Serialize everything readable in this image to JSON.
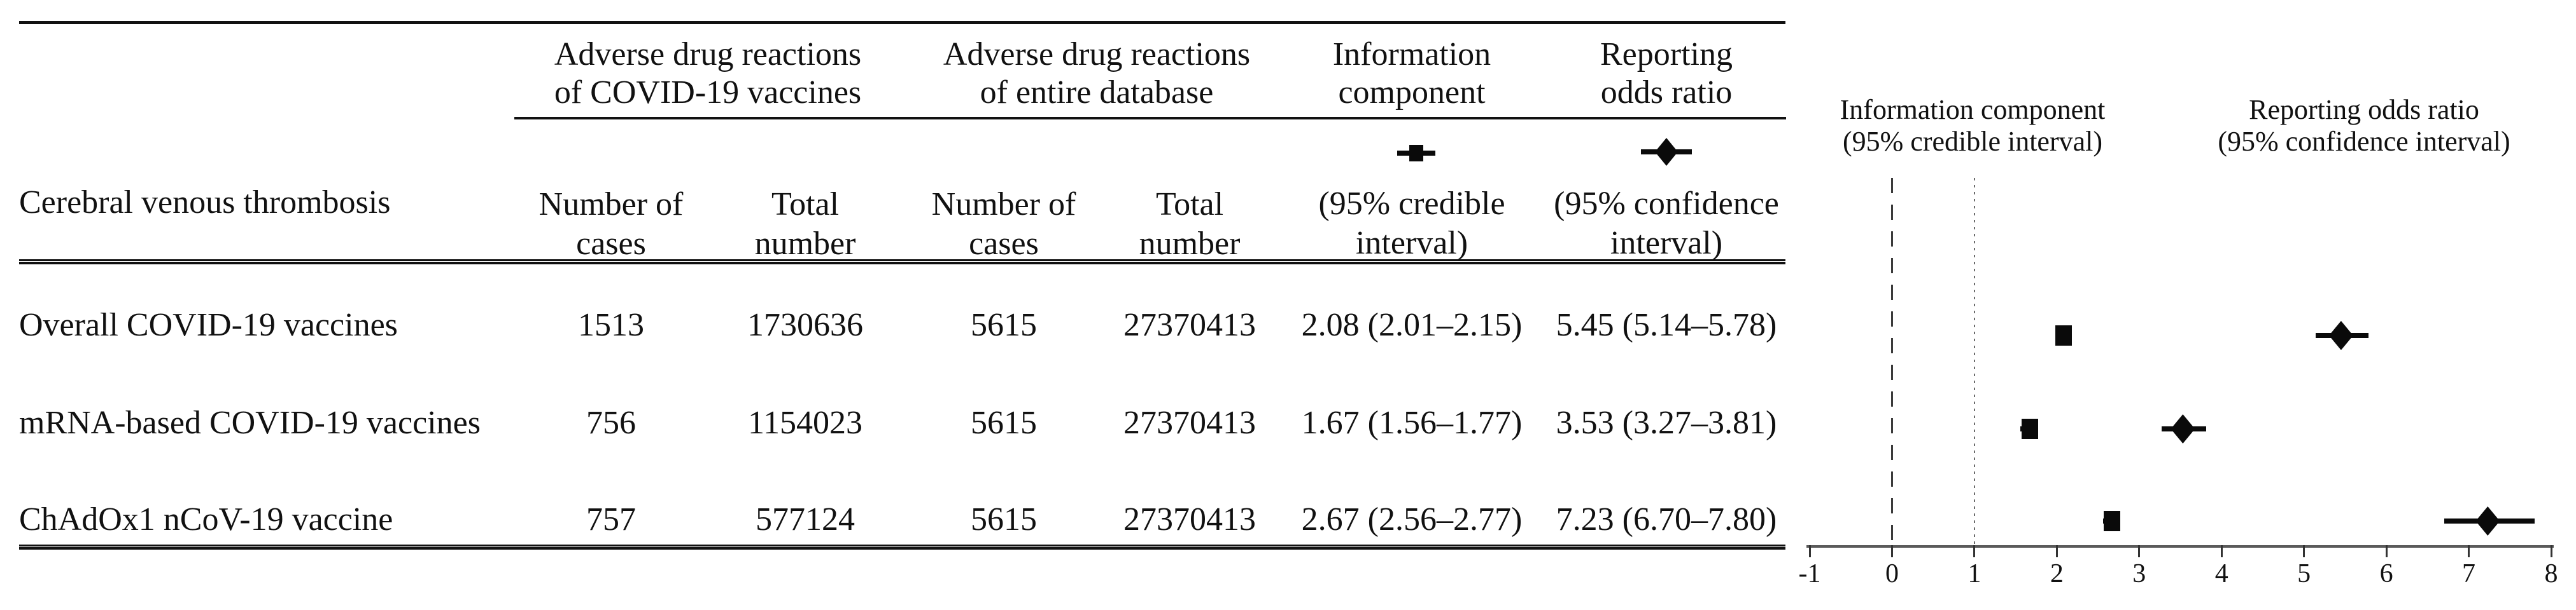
{
  "table": {
    "stub_header": "Cerebral venous thrombosis",
    "group_headers": [
      {
        "lines": [
          "Adverse drug reactions",
          "of COVID-19 vaccines"
        ]
      },
      {
        "lines": [
          "Adverse drug reactions",
          "of entire database"
        ]
      },
      {
        "lines": [
          "Information",
          "component"
        ]
      },
      {
        "lines": [
          "Reporting",
          "odds ratio"
        ]
      }
    ],
    "sub_headers": [
      {
        "lines": [
          "Number of",
          "cases"
        ]
      },
      {
        "lines": [
          "Total",
          "number"
        ]
      },
      {
        "lines": [
          "Number of",
          "cases"
        ]
      },
      {
        "lines": [
          "Total",
          "number"
        ]
      }
    ],
    "interval_headers": [
      {
        "lines": [
          "(95% credible",
          "interval)"
        ]
      },
      {
        "lines": [
          "(95% confidence",
          "interval)"
        ]
      }
    ],
    "legend_symbols": [
      {
        "name": "square-marker",
        "meaning": "Information component"
      },
      {
        "name": "diamond-marker",
        "meaning": "Reporting odds ratio"
      }
    ],
    "rows": [
      {
        "label": "Overall COVID-19 vaccines",
        "values": [
          "1513",
          "1730636",
          "5615",
          "27370413",
          "2.08 (2.01–2.15)",
          "5.45 (5.14–5.78)"
        ]
      },
      {
        "label": "mRNA-based COVID-19 vaccines",
        "values": [
          "756",
          "1154023",
          "5615",
          "27370413",
          "1.67 (1.56–1.77)",
          "3.53 (3.27–3.81)"
        ]
      },
      {
        "label": "ChAdOx1 nCoV-19 vaccine",
        "values": [
          "757",
          "577124",
          "5615",
          "27370413",
          "2.67 (2.56–2.77)",
          "7.23 (6.70–7.80)"
        ]
      }
    ]
  },
  "chart_data": {
    "type": "scatter",
    "subtype": "forest_plot",
    "panels": [
      {
        "title": "Information component",
        "subtitle": "(95% credible interval)",
        "marker": "square"
      },
      {
        "title": "Reporting odds ratio",
        "subtitle": "(95% confidence interval)",
        "marker": "diamond"
      }
    ],
    "categories": [
      "Overall COVID-19 vaccines",
      "mRNA-based COVID-19 vaccines",
      "ChAdOx1 nCoV-19 vaccine"
    ],
    "series": [
      {
        "name": "Information component (95% credible interval)",
        "marker": "square",
        "points": [
          {
            "est": 2.08,
            "lo": 2.01,
            "hi": 2.15
          },
          {
            "est": 1.67,
            "lo": 1.56,
            "hi": 1.77
          },
          {
            "est": 2.67,
            "lo": 2.56,
            "hi": 2.77
          }
        ]
      },
      {
        "name": "Reporting odds ratio (95% confidence interval)",
        "marker": "diamond",
        "points": [
          {
            "est": 5.45,
            "lo": 5.14,
            "hi": 5.78
          },
          {
            "est": 3.53,
            "lo": 3.27,
            "hi": 3.81
          },
          {
            "est": 7.23,
            "lo": 6.7,
            "hi": 7.8
          }
        ]
      }
    ],
    "x_axis": {
      "min": -1,
      "max": 8,
      "ticks": [
        -1,
        0,
        1,
        2,
        3,
        4,
        5,
        6,
        7,
        8
      ],
      "reference_lines": [
        {
          "x": 0,
          "style": "dashed"
        },
        {
          "x": 1,
          "style": "dotted"
        }
      ]
    },
    "grid": false,
    "legend_position": "table-header",
    "marker_color": "#0a0a0a",
    "background": "#ffffff"
  }
}
